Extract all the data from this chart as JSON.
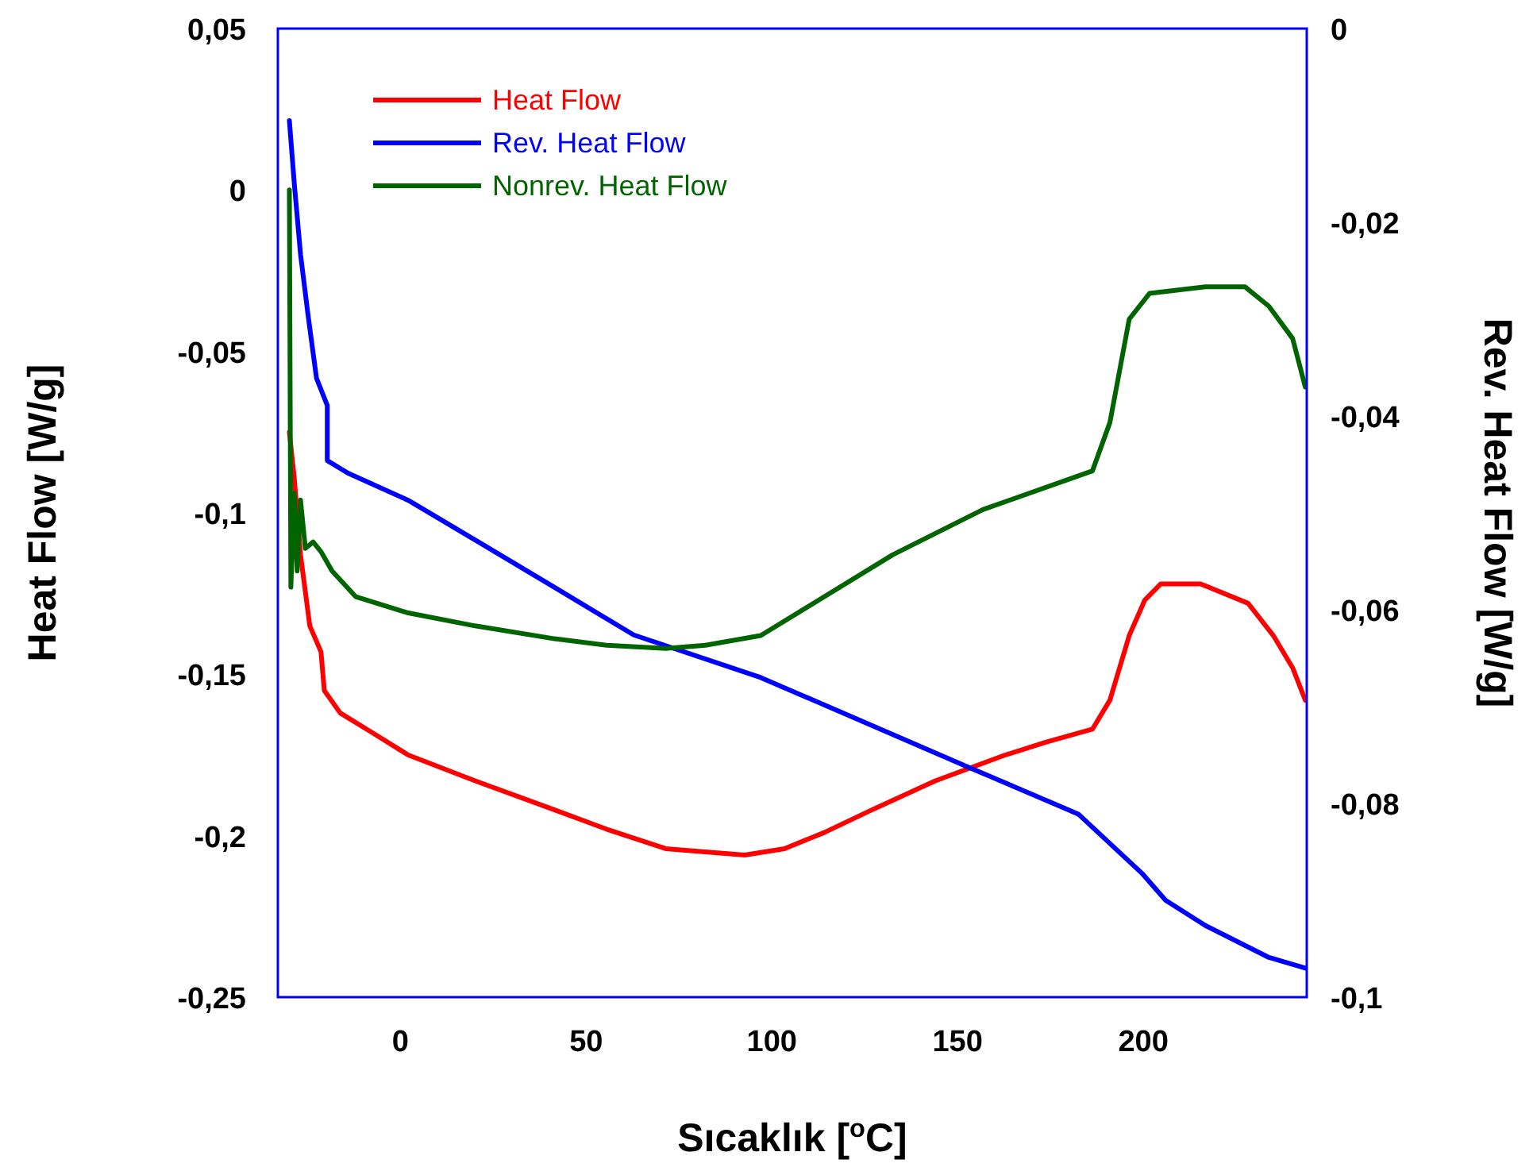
{
  "chart_data": {
    "type": "line",
    "xlabel": "Sıcaklık [$^{o}$C]",
    "ylabel": "Heat Flow [W/g]",
    "y2label": "Rev. Heat Flow [W/g]",
    "xlim": [
      -33,
      244
    ],
    "xticks": [
      0,
      50,
      100,
      150,
      200
    ],
    "ylim": [
      -0.25,
      0.05
    ],
    "yticks": [
      {
        "value": -0.25,
        "label": "-0,25"
      },
      {
        "value": -0.2,
        "label": "-0,2"
      },
      {
        "value": -0.15,
        "label": "-0,15"
      },
      {
        "value": -0.1,
        "label": "-0,1"
      },
      {
        "value": -0.05,
        "label": "-0,05"
      },
      0,
      {
        "value": 0.05,
        "label": "0,05"
      }
    ],
    "y2lim": [
      -0.1,
      0
    ],
    "y2ticks": [
      {
        "value": -0.1,
        "label": "-0,1"
      },
      {
        "value": -0.08,
        "label": "-0,08"
      },
      {
        "value": -0.06,
        "label": "-0,06"
      },
      {
        "value": -0.04,
        "label": "-0,04"
      },
      {
        "value": -0.02,
        "label": "-0,02"
      },
      0
    ],
    "grid": false,
    "legend": "top left",
    "marker": "none",
    "line_style": "solid",
    "series": [
      {
        "name": "Heat Flow",
        "color": "#ff0000",
        "x": [
          -29.9,
          -28.6,
          -26.9,
          -24.4,
          -21.4,
          -20.5,
          -16.2,
          -7.7,
          2.1,
          20.1,
          41.5,
          55.6,
          71.4,
          92.7,
          103.4,
          114.1,
          126.9,
          144,
          162.8,
          173.9,
          186.3,
          191,
          196.2,
          200.4,
          204.7,
          215.4,
          228.2,
          235,
          240.2,
          243.6
        ],
        "values": [
          -0.075,
          -0.089,
          -0.113,
          -0.135,
          -0.143,
          -0.155,
          -0.162,
          -0.168,
          -0.175,
          -0.183,
          -0.192,
          -0.198,
          -0.204,
          -0.206,
          -0.204,
          -0.199,
          -0.192,
          -0.183,
          -0.175,
          -0.171,
          -0.167,
          -0.158,
          -0.138,
          -0.127,
          -0.122,
          -0.122,
          -0.128,
          -0.138,
          -0.148,
          -0.158
        ]
      },
      {
        "name": "Rev. Heat Flow",
        "color": "#0000ff",
        "axis": "y2",
        "x": [
          -29.9,
          -28.6,
          -26.9,
          -24.8,
          -22.6,
          -19.7,
          -19.7,
          -14.1,
          2.1,
          20.1,
          41.5,
          62.8,
          97,
          152.6,
          182.5,
          199.6,
          206,
          216.7,
          233.8,
          243.6
        ],
        "values": [
          -0.0095,
          -0.0159,
          -0.0233,
          -0.0298,
          -0.0361,
          -0.0389,
          -0.0446,
          -0.0459,
          -0.0487,
          -0.0528,
          -0.0577,
          -0.0626,
          -0.067,
          -0.0762,
          -0.0811,
          -0.0872,
          -0.09,
          -0.0926,
          -0.0959,
          -0.097
        ]
      },
      {
        "name": "Nonrev. Heat Flow",
        "color": "#006400",
        "x": [
          -29.9,
          -29.5,
          -28.6,
          -27.8,
          -26.9,
          -25.6,
          -23.5,
          -21.4,
          -18.4,
          -12,
          2.1,
          20.1,
          41.5,
          55.6,
          71.4,
          82.1,
          97,
          132.5,
          156.8,
          186.3,
          191,
          196.2,
          201.7,
          216.7,
          227.4,
          233.8,
          240.2,
          243.6
        ],
        "values": [
          0.0,
          -0.123,
          -0.094,
          -0.118,
          -0.096,
          -0.111,
          -0.109,
          -0.112,
          -0.118,
          -0.126,
          -0.131,
          -0.135,
          -0.139,
          -0.141,
          -0.142,
          -0.141,
          -0.138,
          -0.113,
          -0.099,
          -0.087,
          -0.072,
          -0.04,
          -0.032,
          -0.03,
          -0.03,
          -0.036,
          -0.046,
          -0.061
        ]
      }
    ]
  }
}
